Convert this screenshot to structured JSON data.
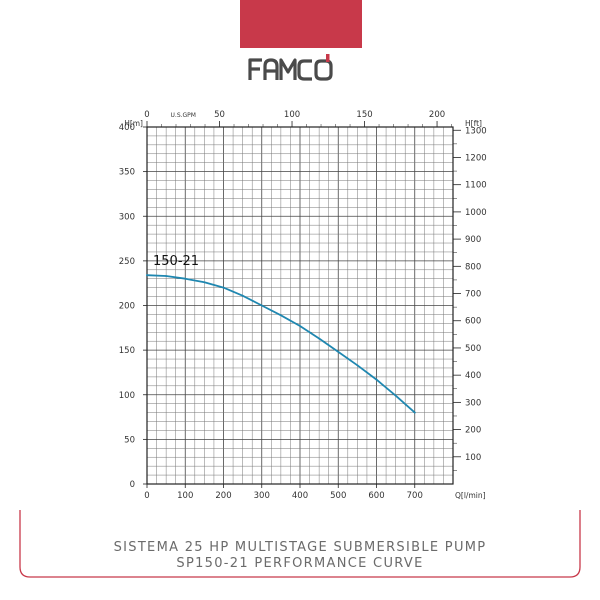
{
  "brand": {
    "name": "FAMCO",
    "accent_color": "#c8394a",
    "logo_color": "#4a4a4a"
  },
  "caption": {
    "line1": "SISTEMA 25 HP MULTISTAGE SUBMERSIBLE PUMP",
    "line2": "SP150-21 PERFORMANCE CURVE"
  },
  "chart_data": {
    "type": "line",
    "title": "",
    "xlabel": "Q[l/min]",
    "ylabel": "H[m]",
    "x2label": "U.S.GPM",
    "y2label": "H[ft]",
    "xlim": [
      0,
      800
    ],
    "ylim": [
      0,
      400
    ],
    "xticks": [
      "0",
      "100",
      "200",
      "300",
      "400",
      "500",
      "600",
      "700"
    ],
    "yticks": [
      "0",
      "50",
      "100",
      "150",
      "200",
      "250",
      "300",
      "350",
      "400"
    ],
    "x2lim": [
      0,
      211
    ],
    "x2ticks": [
      "0",
      "50",
      "100",
      "150",
      "200"
    ],
    "y2lim": [
      0,
      1312
    ],
    "y2ticks": [
      "100",
      "200",
      "300",
      "400",
      "500",
      "600",
      "700",
      "800",
      "900",
      "1000",
      "1100",
      "1200",
      "1300"
    ],
    "grid": true,
    "line_color": "#1f87b0",
    "series": [
      {
        "name": "150-21",
        "x": [
          0,
          50,
          100,
          150,
          200,
          250,
          300,
          350,
          400,
          450,
          500,
          550,
          600,
          650,
          700
        ],
        "y": [
          234,
          233,
          230,
          226,
          220,
          211,
          200,
          189,
          177,
          163,
          148,
          133,
          117,
          99,
          80
        ]
      }
    ]
  }
}
